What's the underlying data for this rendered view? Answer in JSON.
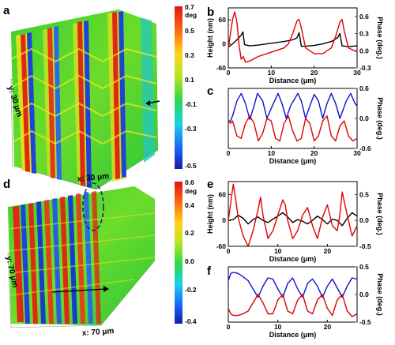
{
  "panel_labels": [
    "a",
    "b",
    "c",
    "d",
    "e",
    "f"
  ],
  "maps": [
    {
      "label": "a",
      "x_extent": "x: 30 μm",
      "y_extent": "y: 30 μm",
      "colorbar_unit": "deg",
      "colorbar_ticks": [
        "0.7",
        "0.5",
        "0.3",
        "0.1",
        "-0.1",
        "-0.3",
        "-0.5"
      ],
      "colormap": [
        "#1a1aa8",
        "#1a6cff",
        "#19d3e6",
        "#29d94a",
        "#b7e61e",
        "#ffd21a",
        "#ff6a14",
        "#e01414"
      ]
    },
    {
      "label": "d",
      "x_extent": "x: 70 μm",
      "y_extent": "y: 70 μm",
      "colorbar_unit": "deg",
      "colorbar_ticks": [
        "0.6",
        "0.4",
        "0.2",
        "0.0",
        "-0.2",
        "-0.4"
      ],
      "colormap": [
        "#1a1aa8",
        "#1a6cff",
        "#19d3e6",
        "#29d94a",
        "#b7e61e",
        "#ffd21a",
        "#ff6a14",
        "#e01414"
      ]
    }
  ],
  "chart_data": [
    {
      "panel": "b",
      "type": "line",
      "xlabel": "Distance (μm)",
      "ylabel": "Height (nm)",
      "y2label": "Phase (deg.)",
      "xlim": [
        0,
        30
      ],
      "ylim": [
        -60,
        90
      ],
      "y2lim": [
        -0.3,
        0.75
      ],
      "xticks": [
        0,
        10,
        20,
        30
      ],
      "yticks": [
        -60,
        0,
        60
      ],
      "y2ticks": [
        -0.3,
        0.0,
        0.3,
        0.6
      ],
      "xtick_labels": [
        "0",
        "10",
        "20",
        "30"
      ],
      "ytick_labels": [
        "-60",
        "0",
        "60"
      ],
      "y2tick_labels": [
        "-0.3",
        "0.0",
        "0.3",
        "0.6"
      ],
      "series": [
        {
          "axis": "left",
          "color": "#000000",
          "x": [
            0,
            1,
            2,
            3,
            3.4,
            3.8,
            5,
            7,
            9,
            11,
            13,
            15,
            16,
            16.5,
            17,
            18,
            20,
            22,
            24,
            25.5,
            26,
            26.5,
            28,
            30
          ],
          "y": [
            -8,
            0,
            10,
            22,
            30,
            -2,
            -5,
            -3,
            0,
            3,
            6,
            10,
            15,
            28,
            -6,
            -6,
            -4,
            0,
            6,
            16,
            26,
            -5,
            -7,
            -5
          ]
        },
        {
          "axis": "right",
          "color": "#e00000",
          "x": [
            0,
            0.5,
            1,
            1.5,
            2,
            2.5,
            3,
            3.5,
            4,
            5,
            7,
            9,
            11,
            13,
            14,
            15,
            16,
            16.5,
            17,
            18,
            20,
            22,
            24,
            25,
            26,
            26.5,
            27,
            28,
            30
          ],
          "y": [
            0.05,
            0.3,
            0.55,
            0.68,
            0.5,
            0.1,
            -0.15,
            -0.1,
            -0.2,
            -0.18,
            -0.1,
            -0.05,
            0.0,
            0.05,
            0.12,
            0.3,
            0.52,
            0.55,
            0.4,
            0.05,
            -0.05,
            -0.05,
            0.05,
            0.25,
            0.5,
            0.55,
            0.35,
            0.05,
            -0.02
          ]
        }
      ]
    },
    {
      "panel": "c",
      "type": "line",
      "xlabel": "Distance (μm)",
      "y2label": "Phase (deg.)",
      "xlim": [
        0,
        30
      ],
      "y2lim": [
        -0.6,
        0.6
      ],
      "xticks": [
        0,
        10,
        20,
        30
      ],
      "y2ticks": [
        -0.6,
        0.0,
        0.6
      ],
      "xtick_labels": [
        "0",
        "10",
        "20",
        "30"
      ],
      "y2tick_labels": [
        "-0.6",
        "0.0",
        "0.6"
      ],
      "series": [
        {
          "axis": "right",
          "color": "#1010d0",
          "x": [
            0,
            0.5,
            1,
            2,
            3,
            4,
            5,
            6,
            6.8,
            8,
            9,
            10,
            11.6,
            12.5,
            13.5,
            14.5,
            16.2,
            17,
            18,
            19,
            20,
            21,
            22,
            23,
            24,
            25,
            26,
            27.5,
            28.5,
            29.5,
            30
          ],
          "y": [
            -0.05,
            -0.05,
            0.05,
            0.35,
            0.5,
            0.3,
            -0.02,
            0.25,
            0.5,
            0.35,
            0.0,
            0.2,
            0.5,
            0.3,
            0.0,
            0.25,
            0.5,
            0.35,
            0.0,
            0.25,
            0.48,
            0.35,
            0.0,
            0.3,
            0.5,
            0.3,
            0.0,
            0.35,
            0.5,
            0.3,
            0.25
          ]
        },
        {
          "axis": "right",
          "color": "#e00000",
          "x": [
            0,
            0.5,
            1,
            2,
            3,
            4,
            5,
            6,
            7,
            8,
            9,
            10,
            11,
            12,
            13,
            14,
            15,
            16,
            17,
            18,
            19,
            20,
            21,
            22,
            23,
            24,
            25,
            26,
            27,
            28,
            29,
            30
          ],
          "y": [
            -0.05,
            -0.1,
            -0.05,
            -0.35,
            -0.4,
            -0.1,
            0.05,
            -0.1,
            -0.45,
            -0.3,
            0.0,
            -0.05,
            -0.4,
            -0.45,
            -0.1,
            0.05,
            -0.25,
            -0.45,
            -0.4,
            0.0,
            -0.1,
            -0.45,
            -0.35,
            -0.05,
            0.05,
            -0.35,
            -0.45,
            -0.15,
            -0.05,
            -0.35,
            -0.45,
            -0.4
          ]
        }
      ]
    },
    {
      "panel": "e",
      "type": "line",
      "xlabel": "Distance (μm)",
      "ylabel": "Height (nm)",
      "y2label": "Phase (deg.)",
      "xlim": [
        0,
        26
      ],
      "ylim": [
        -60,
        90
      ],
      "y2lim": [
        -0.5,
        0.75
      ],
      "xticks": [
        0,
        10,
        20
      ],
      "yticks": [
        -60,
        0,
        60
      ],
      "y2ticks": [
        -0.5,
        0.0,
        0.5
      ],
      "xtick_labels": [
        "0",
        "10",
        "20"
      ],
      "ytick_labels": [
        "-60",
        "0",
        "60"
      ],
      "y2tick_labels": [
        "-0.5",
        "0.0",
        "0.5"
      ],
      "series": [
        {
          "axis": "left",
          "color": "#000000",
          "x": [
            0,
            1,
            2,
            3,
            4,
            5,
            6,
            7,
            8,
            9,
            10,
            11,
            12,
            13,
            14,
            15,
            16,
            17,
            18,
            19,
            20,
            21,
            22,
            23,
            24,
            25,
            26
          ],
          "y": [
            0,
            2,
            12,
            5,
            -8,
            2,
            8,
            0,
            -5,
            3,
            10,
            18,
            8,
            -5,
            2,
            -2,
            -8,
            0,
            10,
            2,
            -8,
            3,
            0,
            -12,
            5,
            18,
            10
          ]
        },
        {
          "axis": "right",
          "color": "#e00000",
          "x": [
            0,
            0.5,
            1,
            1.5,
            2,
            3,
            4,
            5,
            6,
            6.5,
            7,
            8,
            9,
            10,
            11,
            11.5,
            12,
            13,
            14,
            15,
            16,
            17,
            18,
            19,
            20,
            21,
            22,
            22.5,
            23,
            24,
            25,
            26
          ],
          "y": [
            0.0,
            0.35,
            0.7,
            0.4,
            0.05,
            -0.3,
            -0.5,
            -0.2,
            0.2,
            0.45,
            0.1,
            -0.35,
            -0.2,
            0.1,
            0.4,
            0.3,
            0.0,
            -0.35,
            -0.2,
            0.1,
            0.25,
            -0.1,
            -0.35,
            0.05,
            0.3,
            -0.1,
            -0.2,
            0.1,
            0.55,
            0.1,
            -0.3,
            -0.1
          ]
        }
      ]
    },
    {
      "panel": "f",
      "type": "line",
      "xlabel": "Distance (μm)",
      "y2label": "Phase (deg.)",
      "xlim": [
        0,
        26
      ],
      "y2lim": [
        -0.5,
        0.5
      ],
      "xticks": [
        0,
        10,
        20
      ],
      "y2ticks": [
        -0.5,
        0.0,
        0.5
      ],
      "xtick_labels": [
        "0",
        "10",
        "20"
      ],
      "y2tick_labels": [
        "-0.5",
        "0.0",
        "0.5"
      ],
      "series": [
        {
          "axis": "right",
          "color": "#1010d0",
          "x": [
            0,
            0.5,
            1,
            2,
            3,
            4,
            5,
            6,
            7,
            8,
            9,
            10,
            11,
            12,
            13,
            14,
            15,
            16,
            17,
            18,
            19,
            20,
            21,
            22,
            23,
            24,
            25,
            26
          ],
          "y": [
            0.25,
            0.38,
            0.4,
            0.38,
            0.32,
            0.25,
            0.1,
            -0.05,
            0.15,
            0.3,
            0.28,
            0.1,
            -0.05,
            0.2,
            0.3,
            0.1,
            -0.05,
            0.2,
            0.28,
            0.15,
            -0.05,
            0.15,
            0.28,
            0.12,
            -0.05,
            0.15,
            0.3,
            0.28
          ]
        },
        {
          "axis": "right",
          "color": "#e00000",
          "x": [
            0,
            0.5,
            1,
            2,
            3,
            4,
            5,
            6,
            7,
            8,
            9,
            10,
            11,
            12,
            13,
            14,
            15,
            16,
            17,
            18,
            19,
            20,
            21,
            22,
            23,
            24,
            25,
            26
          ],
          "y": [
            -0.25,
            -0.35,
            -0.38,
            -0.38,
            -0.35,
            -0.3,
            -0.15,
            0.0,
            -0.15,
            -0.35,
            -0.35,
            -0.1,
            0.0,
            -0.3,
            -0.35,
            -0.1,
            0.0,
            -0.3,
            -0.35,
            -0.1,
            0.0,
            -0.25,
            -0.38,
            -0.1,
            0.0,
            -0.3,
            -0.4,
            -0.35
          ]
        }
      ]
    }
  ]
}
